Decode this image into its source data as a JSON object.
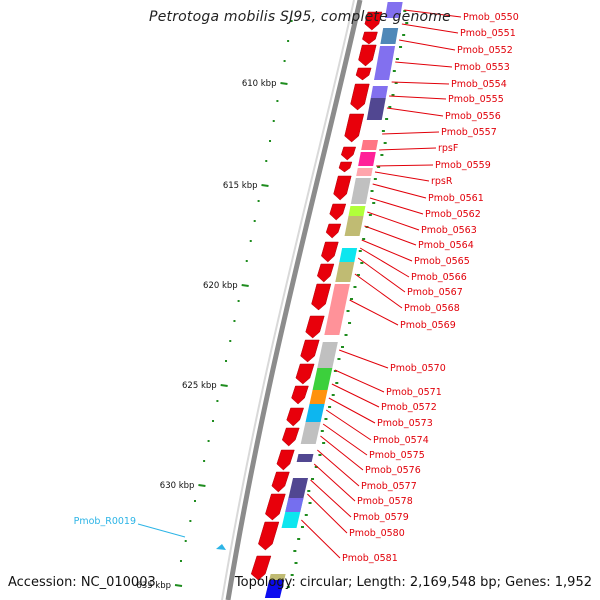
{
  "title": "Petrotoga mobilis SJ95, complete genome",
  "footer": {
    "accession": "Accession: NC_010003",
    "topology": "Topology: circular; Length: 2,169,548 bp; Genes: 1,952"
  },
  "scale": {
    "unit": "kbp",
    "ticks": [
      {
        "label": "610 kbp"
      },
      {
        "label": "615 kbp"
      },
      {
        "label": "620 kbp"
      },
      {
        "label": "625 kbp"
      },
      {
        "label": "630 kbp"
      },
      {
        "label": "635 kbp"
      }
    ]
  },
  "colors": {
    "cds_forward": "#e8000b",
    "label_cds": "#e1000a",
    "label_rna": "#2cb4e6",
    "backbone": "#8c8c8c",
    "gc_tick": "#1e8c1e"
  },
  "genes": [
    {
      "name": "Pmob_0550",
      "type": "cds"
    },
    {
      "name": "Pmob_0551",
      "type": "cds"
    },
    {
      "name": "Pmob_0552",
      "type": "cds"
    },
    {
      "name": "Pmob_0553",
      "type": "cds"
    },
    {
      "name": "Pmob_0554",
      "type": "cds"
    },
    {
      "name": "Pmob_0555",
      "type": "cds"
    },
    {
      "name": "Pmob_0556",
      "type": "cds"
    },
    {
      "name": "Pmob_0557",
      "type": "cds"
    },
    {
      "name": "rpsF",
      "type": "cds"
    },
    {
      "name": "Pmob_0559",
      "type": "cds"
    },
    {
      "name": "rpsR",
      "type": "cds"
    },
    {
      "name": "Pmob_0561",
      "type": "cds"
    },
    {
      "name": "Pmob_0562",
      "type": "cds"
    },
    {
      "name": "Pmob_0563",
      "type": "cds"
    },
    {
      "name": "Pmob_0564",
      "type": "cds"
    },
    {
      "name": "Pmob_0565",
      "type": "cds"
    },
    {
      "name": "Pmob_0566",
      "type": "cds"
    },
    {
      "name": "Pmob_0567",
      "type": "cds"
    },
    {
      "name": "Pmob_0568",
      "type": "cds"
    },
    {
      "name": "Pmob_0569",
      "type": "cds"
    },
    {
      "name": "Pmob_0570",
      "type": "cds"
    },
    {
      "name": "Pmob_0571",
      "type": "cds"
    },
    {
      "name": "Pmob_0572",
      "type": "cds"
    },
    {
      "name": "Pmob_0573",
      "type": "cds"
    },
    {
      "name": "Pmob_0574",
      "type": "cds"
    },
    {
      "name": "Pmob_0575",
      "type": "cds"
    },
    {
      "name": "Pmob_0576",
      "type": "cds"
    },
    {
      "name": "Pmob_0577",
      "type": "cds"
    },
    {
      "name": "Pmob_0578",
      "type": "cds"
    },
    {
      "name": "Pmob_0579",
      "type": "cds"
    },
    {
      "name": "Pmob_0580",
      "type": "cds"
    },
    {
      "name": "Pmob_0581",
      "type": "cds"
    },
    {
      "name": "Pmob_R0019",
      "type": "rna"
    }
  ],
  "cog_colors": [
    "#7b68ee",
    "#4682b4",
    "#7b68ee",
    "#7b68ee",
    "#483d8b",
    "#ff6f7d",
    "#ff1493",
    "#ffa0a8",
    "#bdbdbd",
    "#adff2f",
    "#bdb76b",
    "#00e5ee",
    "#bdb76b",
    "#ff8c94",
    "#bdbdbd",
    "#32cd32",
    "#ff8c00",
    "#00b2ee",
    "#bdbdbd",
    "#483d8b",
    "#483d8b",
    "#00e5ee",
    "#7b68ee",
    "#bdb76b",
    "#0000ee"
  ]
}
